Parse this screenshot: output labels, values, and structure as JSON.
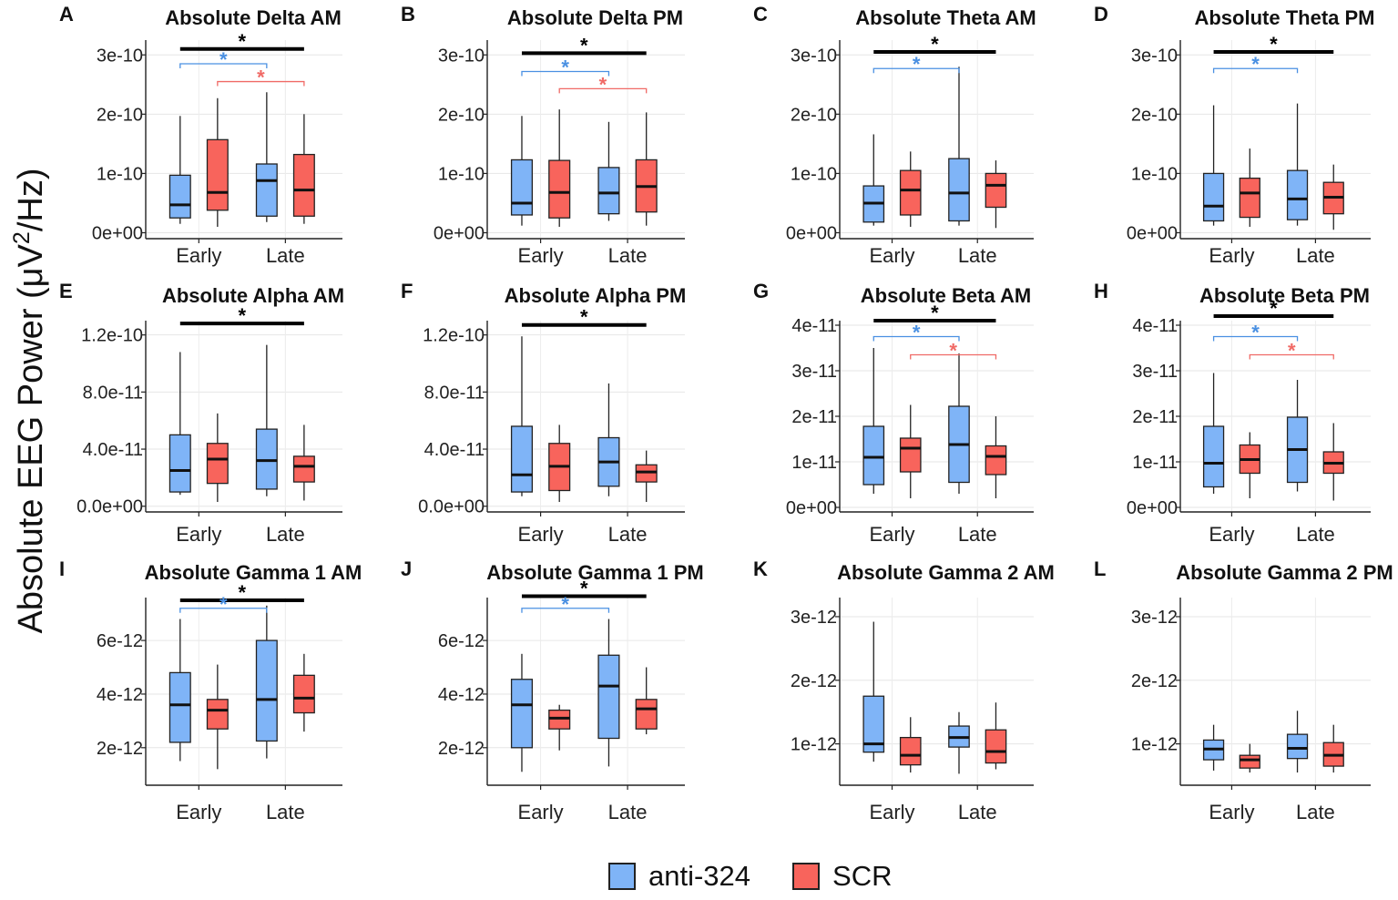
{
  "figure": {
    "ylabel_main": "Absolute EEG Power (μV",
    "ylabel_sup": "2",
    "ylabel_end": "/Hz)"
  },
  "colors": {
    "anti": "#7fb4f7",
    "scr": "#f8645c",
    "sig_black": "#000000",
    "sig_blue": "#4a90e2",
    "sig_red": "#f06a66"
  },
  "legend": {
    "anti_label": "anti-324",
    "scr_label": "SCR"
  },
  "chart_data": [
    {
      "type": "box",
      "letter": "A",
      "title": "Absolute Delta AM",
      "categories": [
        "Early",
        "Late"
      ],
      "ylim": [
        -0.1,
        3.25
      ],
      "ticks": [
        {
          "v": 0,
          "label": "0e+00"
        },
        {
          "v": 1,
          "label": "1e-10"
        },
        {
          "v": 2,
          "label": "2e-10"
        },
        {
          "v": 3,
          "label": "3e-10"
        }
      ],
      "series": [
        {
          "name": "anti-324",
          "boxes": [
            [
              0.15,
              0.25,
              0.47,
              0.97,
              1.97
            ],
            [
              0.18,
              0.28,
              0.88,
              1.16,
              2.37
            ]
          ]
        },
        {
          "name": "SCR",
          "boxes": [
            [
              0.1,
              0.38,
              0.68,
              1.57,
              2.27
            ],
            [
              0.15,
              0.28,
              0.72,
              1.32,
              2.0
            ]
          ]
        }
      ],
      "sig": [
        {
          "color": "black",
          "from": 0,
          "to": 3,
          "y": 3.1,
          "label": "*"
        },
        {
          "color": "blue",
          "from": 0,
          "to": 2,
          "y": 2.85,
          "label": "*"
        },
        {
          "color": "red",
          "from": 1,
          "to": 3,
          "y": 2.55,
          "label": "*"
        }
      ]
    },
    {
      "type": "box",
      "letter": "B",
      "title": "Absolute Delta PM",
      "categories": [
        "Early",
        "Late"
      ],
      "ylim": [
        -0.1,
        3.25
      ],
      "ticks": [
        {
          "v": 0,
          "label": "0e+00"
        },
        {
          "v": 1,
          "label": "1e-10"
        },
        {
          "v": 2,
          "label": "2e-10"
        },
        {
          "v": 3,
          "label": "3e-10"
        }
      ],
      "series": [
        {
          "name": "anti-324",
          "boxes": [
            [
              0.12,
              0.3,
              0.5,
              1.23,
              1.97
            ],
            [
              0.2,
              0.32,
              0.67,
              1.1,
              1.87
            ]
          ]
        },
        {
          "name": "SCR",
          "boxes": [
            [
              0.1,
              0.25,
              0.68,
              1.22,
              2.08
            ],
            [
              0.12,
              0.35,
              0.78,
              1.23,
              2.03
            ]
          ]
        }
      ],
      "sig": [
        {
          "color": "black",
          "from": 0,
          "to": 3,
          "y": 3.03,
          "label": "*"
        },
        {
          "color": "blue",
          "from": 0,
          "to": 2,
          "y": 2.72,
          "label": "*"
        },
        {
          "color": "red",
          "from": 1,
          "to": 3,
          "y": 2.43,
          "label": "*"
        }
      ]
    },
    {
      "type": "box",
      "letter": "C",
      "title": "Absolute Theta AM",
      "categories": [
        "Early",
        "Late"
      ],
      "ylim": [
        -0.1,
        3.25
      ],
      "ticks": [
        {
          "v": 0,
          "label": "0e+00"
        },
        {
          "v": 1,
          "label": "1e-10"
        },
        {
          "v": 2,
          "label": "2e-10"
        },
        {
          "v": 3,
          "label": "3e-10"
        }
      ],
      "series": [
        {
          "name": "anti-324",
          "boxes": [
            [
              0.12,
              0.18,
              0.5,
              0.79,
              1.66
            ],
            [
              0.12,
              0.2,
              0.67,
              1.25,
              2.8
            ]
          ]
        },
        {
          "name": "SCR",
          "boxes": [
            [
              0.1,
              0.3,
              0.72,
              1.05,
              1.37
            ],
            [
              0.08,
              0.43,
              0.8,
              1.0,
              1.22
            ]
          ]
        }
      ],
      "sig": [
        {
          "color": "black",
          "from": 0,
          "to": 3,
          "y": 3.05,
          "label": "*"
        },
        {
          "color": "blue",
          "from": 0,
          "to": 2,
          "y": 2.77,
          "label": "*"
        }
      ]
    },
    {
      "type": "box",
      "letter": "D",
      "title": "Absolute Theta PM",
      "categories": [
        "Early",
        "Late"
      ],
      "ylim": [
        -0.1,
        3.25
      ],
      "ticks": [
        {
          "v": 0,
          "label": "0e+00"
        },
        {
          "v": 1,
          "label": "1e-10"
        },
        {
          "v": 2,
          "label": "2e-10"
        },
        {
          "v": 3,
          "label": "3e-10"
        }
      ],
      "series": [
        {
          "name": "anti-324",
          "boxes": [
            [
              0.12,
              0.2,
              0.45,
              1.0,
              2.15
            ],
            [
              0.12,
              0.22,
              0.57,
              1.05,
              2.18
            ]
          ]
        },
        {
          "name": "SCR",
          "boxes": [
            [
              0.1,
              0.26,
              0.67,
              0.92,
              1.42
            ],
            [
              0.05,
              0.32,
              0.6,
              0.85,
              1.15
            ]
          ]
        }
      ],
      "sig": [
        {
          "color": "black",
          "from": 0,
          "to": 3,
          "y": 3.05,
          "label": "*"
        },
        {
          "color": "blue",
          "from": 0,
          "to": 2,
          "y": 2.77,
          "label": "*"
        }
      ]
    },
    {
      "type": "box",
      "letter": "E",
      "title": "Absolute Alpha AM",
      "categories": [
        "Early",
        "Late"
      ],
      "ylim": [
        -0.4,
        13.0
      ],
      "ticks": [
        {
          "v": 0,
          "label": "0.0e+00"
        },
        {
          "v": 4,
          "label": "4.0e-11"
        },
        {
          "v": 8,
          "label": "8.0e-11"
        },
        {
          "v": 12,
          "label": "1.2e-10"
        }
      ],
      "series": [
        {
          "name": "anti-324",
          "boxes": [
            [
              0.8,
              1.0,
              2.5,
              5.0,
              10.8
            ],
            [
              0.7,
              1.2,
              3.2,
              5.4,
              11.3
            ]
          ]
        },
        {
          "name": "SCR",
          "boxes": [
            [
              0.3,
              1.6,
              3.3,
              4.4,
              6.5
            ],
            [
              0.4,
              1.7,
              2.8,
              3.5,
              5.7
            ]
          ]
        }
      ],
      "sig": [
        {
          "color": "black",
          "from": 0,
          "to": 3,
          "y": 12.8,
          "label": "*"
        }
      ]
    },
    {
      "type": "box",
      "letter": "F",
      "title": "Absolute Alpha PM",
      "categories": [
        "Early",
        "Late"
      ],
      "ylim": [
        -0.4,
        13.0
      ],
      "ticks": [
        {
          "v": 0,
          "label": "0.0e+00"
        },
        {
          "v": 4,
          "label": "4.0e-11"
        },
        {
          "v": 8,
          "label": "8.0e-11"
        },
        {
          "v": 12,
          "label": "1.2e-10"
        }
      ],
      "series": [
        {
          "name": "anti-324",
          "boxes": [
            [
              0.7,
              1.0,
              2.2,
              5.6,
              11.9
            ],
            [
              0.7,
              1.4,
              3.1,
              4.8,
              8.6
            ]
          ]
        },
        {
          "name": "SCR",
          "boxes": [
            [
              0.3,
              1.1,
              2.8,
              4.4,
              5.7
            ],
            [
              0.3,
              1.7,
              2.4,
              2.9,
              3.9
            ]
          ]
        }
      ],
      "sig": [
        {
          "color": "black",
          "from": 0,
          "to": 3,
          "y": 12.7,
          "label": "*"
        }
      ]
    },
    {
      "type": "box",
      "letter": "G",
      "title": "Absolute Beta AM",
      "categories": [
        "Early",
        "Late"
      ],
      "ylim": [
        -0.1,
        4.1
      ],
      "ticks": [
        {
          "v": 0,
          "label": "0e+00"
        },
        {
          "v": 1,
          "label": "1e-11"
        },
        {
          "v": 2,
          "label": "2e-11"
        },
        {
          "v": 3,
          "label": "3e-11"
        },
        {
          "v": 4,
          "label": "4e-11"
        }
      ],
      "series": [
        {
          "name": "anti-324",
          "boxes": [
            [
              0.3,
              0.5,
              1.1,
              1.78,
              3.5
            ],
            [
              0.3,
              0.55,
              1.38,
              2.22,
              3.38
            ]
          ]
        },
        {
          "name": "SCR",
          "boxes": [
            [
              0.2,
              0.78,
              1.3,
              1.52,
              2.25
            ],
            [
              0.2,
              0.72,
              1.12,
              1.35,
              2.0
            ]
          ]
        }
      ],
      "sig": [
        {
          "color": "black",
          "from": 0,
          "to": 3,
          "y": 4.1,
          "label": "*"
        },
        {
          "color": "blue",
          "from": 0,
          "to": 2,
          "y": 3.75,
          "label": "*"
        },
        {
          "color": "red",
          "from": 1,
          "to": 3,
          "y": 3.35,
          "label": "*"
        }
      ]
    },
    {
      "type": "box",
      "letter": "H",
      "title": "Absolute Beta PM",
      "categories": [
        "Early",
        "Late"
      ],
      "ylim": [
        -0.1,
        4.1
      ],
      "ticks": [
        {
          "v": 0,
          "label": "0e+00"
        },
        {
          "v": 1,
          "label": "1e-11"
        },
        {
          "v": 2,
          "label": "2e-11"
        },
        {
          "v": 3,
          "label": "3e-11"
        },
        {
          "v": 4,
          "label": "4e-11"
        }
      ],
      "series": [
        {
          "name": "anti-324",
          "boxes": [
            [
              0.3,
              0.45,
              0.97,
              1.78,
              2.95
            ],
            [
              0.35,
              0.55,
              1.27,
              1.98,
              2.8
            ]
          ]
        },
        {
          "name": "SCR",
          "boxes": [
            [
              0.2,
              0.75,
              1.05,
              1.37,
              1.65
            ],
            [
              0.15,
              0.75,
              0.97,
              1.22,
              1.85
            ]
          ]
        }
      ],
      "sig": [
        {
          "color": "black",
          "from": 0,
          "to": 3,
          "y": 4.2,
          "label": "*"
        },
        {
          "color": "blue",
          "from": 0,
          "to": 2,
          "y": 3.75,
          "label": "*"
        },
        {
          "color": "red",
          "from": 1,
          "to": 3,
          "y": 3.35,
          "label": "*"
        }
      ]
    },
    {
      "type": "box",
      "letter": "I",
      "title": "Absolute Gamma 1 AM",
      "categories": [
        "Early",
        "Late"
      ],
      "ylim": [
        0.6,
        7.6
      ],
      "ticks": [
        {
          "v": 2,
          "label": "2e-12"
        },
        {
          "v": 4,
          "label": "4e-12"
        },
        {
          "v": 6,
          "label": "6e-12"
        }
      ],
      "series": [
        {
          "name": "anti-324",
          "boxes": [
            [
              1.5,
              2.2,
              3.6,
              4.8,
              6.8
            ],
            [
              1.6,
              2.25,
              3.8,
              6.0,
              7.3
            ]
          ]
        },
        {
          "name": "SCR",
          "boxes": [
            [
              1.2,
              2.7,
              3.4,
              3.8,
              5.1
            ],
            [
              2.6,
              3.3,
              3.85,
              4.7,
              5.5
            ]
          ]
        }
      ],
      "sig": [
        {
          "color": "black",
          "from": 0,
          "to": 3,
          "y": 7.5,
          "label": "*"
        },
        {
          "color": "blue",
          "from": 0,
          "to": 2,
          "y": 7.2,
          "label": "*"
        }
      ]
    },
    {
      "type": "box",
      "letter": "J",
      "title": "Absolute Gamma 1 PM",
      "categories": [
        "Early",
        "Late"
      ],
      "ylim": [
        0.6,
        7.6
      ],
      "ticks": [
        {
          "v": 2,
          "label": "2e-12"
        },
        {
          "v": 4,
          "label": "4e-12"
        },
        {
          "v": 6,
          "label": "6e-12"
        }
      ],
      "series": [
        {
          "name": "anti-324",
          "boxes": [
            [
              1.1,
              2.0,
              3.6,
              4.55,
              5.5
            ],
            [
              1.3,
              2.35,
              4.3,
              5.45,
              6.8
            ]
          ]
        },
        {
          "name": "SCR",
          "boxes": [
            [
              1.9,
              2.7,
              3.1,
              3.4,
              3.6
            ],
            [
              2.5,
              2.7,
              3.45,
              3.8,
              5.0
            ]
          ]
        }
      ],
      "sig": [
        {
          "color": "black",
          "from": 0,
          "to": 3,
          "y": 7.65,
          "label": "*"
        },
        {
          "color": "blue",
          "from": 0,
          "to": 2,
          "y": 7.2,
          "label": "*"
        }
      ]
    },
    {
      "type": "box",
      "letter": "K",
      "title": "Absolute Gamma 2 AM",
      "categories": [
        "Early",
        "Late"
      ],
      "ylim": [
        0.35,
        3.3
      ],
      "ticks": [
        {
          "v": 1,
          "label": "1e-12"
        },
        {
          "v": 2,
          "label": "2e-12"
        },
        {
          "v": 3,
          "label": "3e-12"
        }
      ],
      "series": [
        {
          "name": "anti-324",
          "boxes": [
            [
              0.72,
              0.87,
              1.0,
              1.75,
              2.92
            ],
            [
              0.53,
              0.95,
              1.1,
              1.28,
              1.5
            ]
          ]
        },
        {
          "name": "SCR",
          "boxes": [
            [
              0.55,
              0.67,
              0.82,
              1.1,
              1.42
            ],
            [
              0.6,
              0.7,
              0.88,
              1.22,
              1.65
            ]
          ]
        }
      ],
      "sig": []
    },
    {
      "type": "box",
      "letter": "L",
      "title": "Absolute Gamma 2 PM",
      "categories": [
        "Early",
        "Late"
      ],
      "ylim": [
        0.35,
        3.3
      ],
      "ticks": [
        {
          "v": 1,
          "label": "1e-12"
        },
        {
          "v": 2,
          "label": "2e-12"
        },
        {
          "v": 3,
          "label": "3e-12"
        }
      ],
      "series": [
        {
          "name": "anti-324",
          "boxes": [
            [
              0.58,
              0.75,
              0.92,
              1.06,
              1.3
            ],
            [
              0.55,
              0.77,
              0.93,
              1.15,
              1.52
            ]
          ]
        },
        {
          "name": "SCR",
          "boxes": [
            [
              0.55,
              0.62,
              0.75,
              0.82,
              1.0
            ],
            [
              0.55,
              0.65,
              0.82,
              1.02,
              1.3
            ]
          ]
        }
      ],
      "sig": []
    }
  ]
}
